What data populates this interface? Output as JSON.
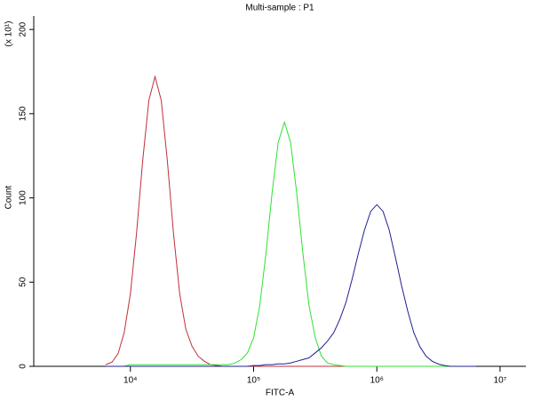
{
  "chart_data": {
    "type": "line",
    "title": "Multi-sample : P1",
    "x_label": "FITC-A",
    "y_label": "Count",
    "y_multiplier": "(x 10¹)",
    "x_scale": "log",
    "xlim": [
      1644,
      16200000
    ],
    "ylim": [
      0,
      208
    ],
    "xticks": [
      {
        "value": 10000,
        "label": "10⁴"
      },
      {
        "value": 100000,
        "label": "10⁵"
      },
      {
        "value": 1000000,
        "label": "10⁶"
      },
      {
        "value": 10000000,
        "label": "10⁷"
      }
    ],
    "yticks": [
      0,
      50,
      100,
      150,
      200
    ],
    "x": [
      6310,
      7079,
      7943,
      8913,
      10000,
      11220,
      12589,
      14125,
      15849,
      17783,
      19953,
      22387,
      25119,
      28184,
      31623,
      35481,
      39811,
      44668,
      50119,
      56234,
      63096,
      70795,
      79433,
      89125,
      100000,
      112202,
      125893,
      141254,
      158489,
      177828,
      199526,
      223872,
      251189,
      281838,
      316228,
      354813,
      398107,
      446684,
      501187,
      562341,
      630957,
      707946,
      794328,
      891251,
      1000000,
      1122018,
      1258925,
      1412538,
      1584893,
      1778279,
      1995262,
      2238721,
      2511886,
      2818383,
      3162278,
      3548134,
      3981072,
      4466836,
      5011872,
      5623413,
      6309573
    ],
    "series": [
      {
        "color": "#c0303a",
        "values": [
          1,
          2.5,
          7.5,
          20,
          43,
          79,
          122,
          158,
          172,
          158,
          122,
          79,
          43,
          22,
          12,
          6,
          3,
          1,
          0.5,
          0,
          0,
          0,
          0,
          0,
          0,
          0,
          0,
          0,
          0,
          0,
          0,
          0,
          0,
          0,
          0,
          0,
          0,
          0,
          0,
          0,
          0,
          0,
          0,
          0,
          0,
          0,
          0,
          0,
          0,
          0,
          0,
          0,
          0,
          0,
          0,
          0,
          0,
          0,
          0,
          0,
          0
        ]
      },
      {
        "color": "#30e030",
        "values": [
          0,
          0,
          0,
          0,
          1,
          1,
          1,
          1,
          1,
          1,
          1,
          1,
          1,
          1,
          1,
          1,
          1,
          1,
          1,
          1,
          1,
          2,
          4,
          8,
          17,
          36,
          67,
          103,
          133,
          145,
          133,
          103,
          67,
          36,
          17,
          6,
          2,
          1,
          0.5,
          0,
          0,
          0,
          0,
          0,
          0,
          0,
          0,
          0,
          0,
          0,
          0,
          0,
          0,
          0,
          0,
          0,
          0,
          0,
          0,
          0,
          0
        ]
      },
      {
        "color": "#202090",
        "values": [
          0,
          0,
          0,
          0,
          0,
          0,
          0,
          0,
          0,
          0,
          0,
          0,
          0,
          0,
          0,
          0,
          0,
          0,
          0,
          0,
          0,
          0,
          0,
          0,
          0.5,
          0.5,
          1,
          1,
          1.5,
          1.5,
          2,
          3,
          4,
          5,
          8,
          11,
          15,
          20,
          28,
          38,
          52,
          67,
          81,
          92,
          96,
          92,
          81,
          65,
          48,
          33,
          20,
          11.5,
          6,
          3,
          1.3,
          0.5,
          0,
          0,
          0,
          0,
          0
        ]
      }
    ]
  }
}
